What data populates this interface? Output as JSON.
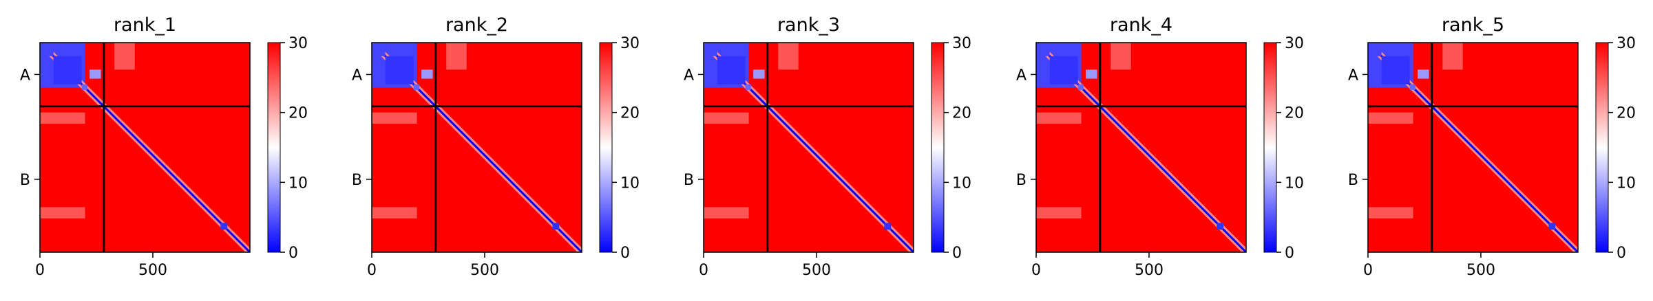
{
  "chart_data": {
    "type": "heatmap",
    "colormap": "bwr",
    "colormap_colors": [
      "#0000ff",
      "#ffffff",
      "#ff0000"
    ],
    "boundary_line_color": "#000000",
    "colorbar": {
      "min": 0,
      "max": 30,
      "ticks": [
        0,
        10,
        20,
        30
      ]
    },
    "xaxis": {
      "range": [
        0,
        930
      ],
      "ticks": [
        0,
        500
      ]
    },
    "chains": [
      {
        "label": "A",
        "start": 0,
        "end": 283
      },
      {
        "label": "B",
        "start": 283,
        "end": 930
      }
    ],
    "panels": [
      {
        "title": "rank_1"
      },
      {
        "title": "rank_2"
      },
      {
        "title": "rank_3"
      },
      {
        "title": "rank_4"
      },
      {
        "title": "rank_5"
      }
    ],
    "domains": [
      {
        "start": 0,
        "end": 60,
        "value": 4
      },
      {
        "start": 60,
        "end": 185,
        "value": 3
      },
      {
        "start": 185,
        "end": 210,
        "value": 6
      },
      {
        "start": 800,
        "end": 830,
        "value": 3
      }
    ],
    "off_diagonal_patches": [
      {
        "r": [
          0,
          200
        ],
        "c": [
          0,
          200
        ],
        "value": 4
      },
      {
        "r": [
          120,
          160
        ],
        "c": [
          220,
          270
        ],
        "value": 9
      },
      {
        "r": [
          310,
          360
        ],
        "c": [
          0,
          200
        ],
        "value": 25
      },
      {
        "r": [
          730,
          780
        ],
        "c": [
          0,
          200
        ],
        "value": 25
      },
      {
        "r": [
          0,
          120
        ],
        "c": [
          330,
          420
        ],
        "value": 25
      }
    ]
  }
}
